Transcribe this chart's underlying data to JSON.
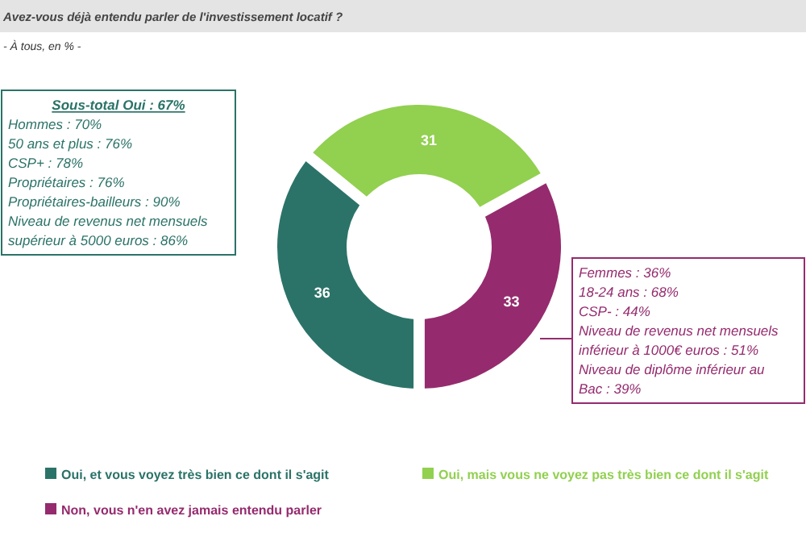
{
  "chart_data": {
    "type": "donut",
    "title": "Avez-vous déjà entendu parler de l'investissement locatif ?",
    "subtitle": "- À tous, en % -",
    "categories": [
      "Oui, et vous voyez très bien ce dont il s'agit",
      "Oui, mais vous ne voyez pas très bien ce dont il s'agit",
      "Non, vous n'en avez jamais entendu parler"
    ],
    "values": [
      36,
      31,
      33
    ],
    "colors": [
      "#2b7368",
      "#92d050",
      "#952b6e"
    ],
    "data_labels": true,
    "legend": "bottom",
    "annotations": [
      "Sous-total Oui : 67%\nHommes : 70%\n50 ans et plus : 76%\nCSP+ : 78%\nPropriétaires : 76%\nPropriétaires-bailleurs : 90%\nNiveau de revenus net mensuels\nsupérieur à 5000 euros : 86%",
      "Femmes : 36%\n18-24 ans : 68%\nCSP- : 44%\nNiveau de revenus net mensuels\ninférieur à 1000€ euros : 51%\nNiveau de diplôme inférieur au\nBac : 39%"
    ]
  }
}
